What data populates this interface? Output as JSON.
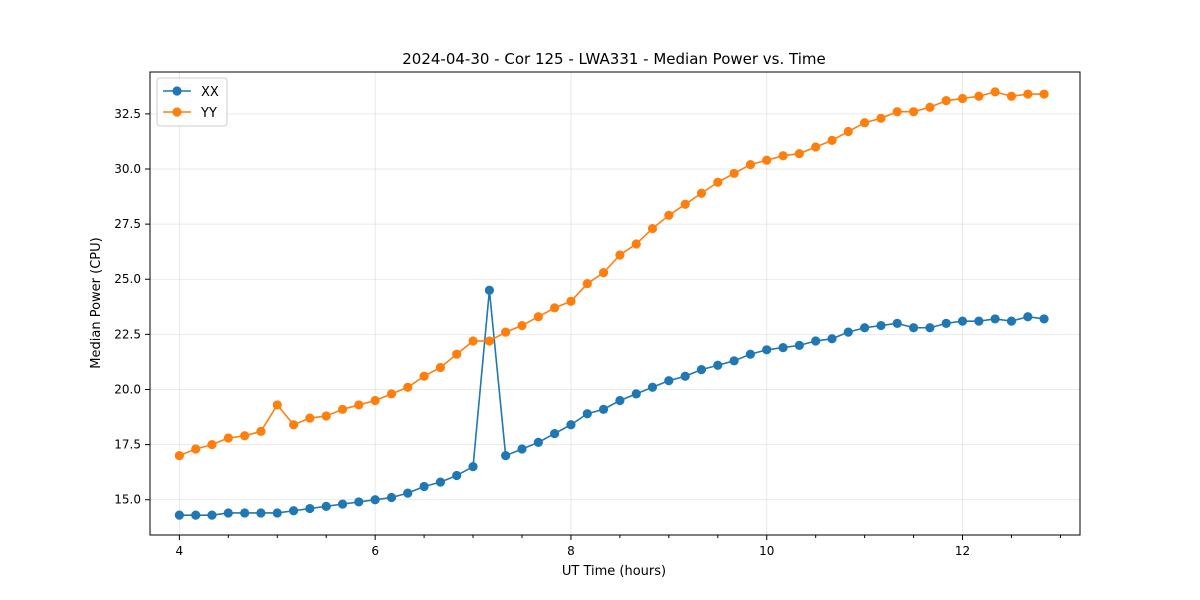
{
  "chart_data": {
    "type": "line",
    "title": "2024-04-30 - Cor 125 - LWA331 - Median Power vs. Time",
    "xlabel": "UT Time (hours)",
    "ylabel": "Median Power (CPU)",
    "xlim": [
      3.7,
      13.2
    ],
    "ylim": [
      13.4,
      34.4
    ],
    "x_ticks": [
      4,
      6,
      8,
      10,
      12
    ],
    "x_tick_labels": [
      "4",
      "6",
      "8",
      "10",
      "12"
    ],
    "x_minor_ticks": [
      3.5,
      4.5,
      5,
      5.5,
      6.5,
      7,
      7.5,
      8.5,
      9,
      9.5,
      10.5,
      11,
      11.5,
      12.5,
      13
    ],
    "y_ticks": [
      15,
      17.5,
      20,
      22.5,
      25,
      27.5,
      30,
      32.5
    ],
    "y_tick_labels": [
      "15.0",
      "17.5",
      "20.0",
      "22.5",
      "25.0",
      "27.5",
      "30.0",
      "32.5"
    ],
    "grid": true,
    "legend_position": "top-left",
    "x": [
      4.0,
      4.167,
      4.333,
      4.5,
      4.667,
      4.833,
      5.0,
      5.167,
      5.333,
      5.5,
      5.667,
      5.833,
      6.0,
      6.167,
      6.333,
      6.5,
      6.667,
      6.833,
      7.0,
      7.167,
      7.333,
      7.5,
      7.667,
      7.833,
      8.0,
      8.167,
      8.333,
      8.5,
      8.667,
      8.833,
      9.0,
      9.167,
      9.333,
      9.5,
      9.667,
      9.833,
      10.0,
      10.167,
      10.333,
      10.5,
      10.667,
      10.833,
      11.0,
      11.167,
      11.333,
      11.5,
      11.667,
      11.833,
      12.0,
      12.167,
      12.333,
      12.5,
      12.667,
      12.833
    ],
    "series": [
      {
        "name": "XX",
        "color": "#1f77b4",
        "values": [
          14.3,
          14.3,
          14.3,
          14.4,
          14.4,
          14.4,
          14.4,
          14.5,
          14.6,
          14.7,
          14.8,
          14.9,
          15.0,
          15.1,
          15.3,
          15.6,
          15.8,
          16.1,
          16.5,
          24.5,
          17.0,
          17.3,
          17.6,
          18.0,
          18.4,
          18.9,
          19.1,
          19.5,
          19.8,
          20.1,
          20.4,
          20.6,
          20.9,
          21.1,
          21.3,
          21.6,
          21.8,
          21.9,
          22.0,
          22.2,
          22.3,
          22.6,
          22.8,
          22.9,
          23.0,
          22.8,
          22.8,
          23.0,
          23.1,
          23.1,
          23.2,
          23.1,
          23.3,
          23.2
        ]
      },
      {
        "name": "YY",
        "color": "#ff7f0e",
        "values": [
          17.0,
          17.3,
          17.5,
          17.8,
          17.9,
          18.1,
          19.3,
          18.4,
          18.7,
          18.8,
          19.1,
          19.3,
          19.5,
          19.8,
          20.1,
          20.6,
          21.0,
          21.6,
          22.2,
          22.2,
          22.6,
          22.9,
          23.3,
          23.7,
          24.0,
          24.8,
          25.3,
          26.1,
          26.6,
          27.3,
          27.9,
          28.4,
          28.9,
          29.4,
          29.8,
          30.2,
          30.4,
          30.6,
          30.7,
          31.0,
          31.3,
          31.7,
          32.1,
          32.3,
          32.6,
          32.6,
          32.8,
          33.1,
          33.2,
          33.3,
          33.5,
          33.3,
          33.4,
          33.4
        ]
      }
    ]
  }
}
